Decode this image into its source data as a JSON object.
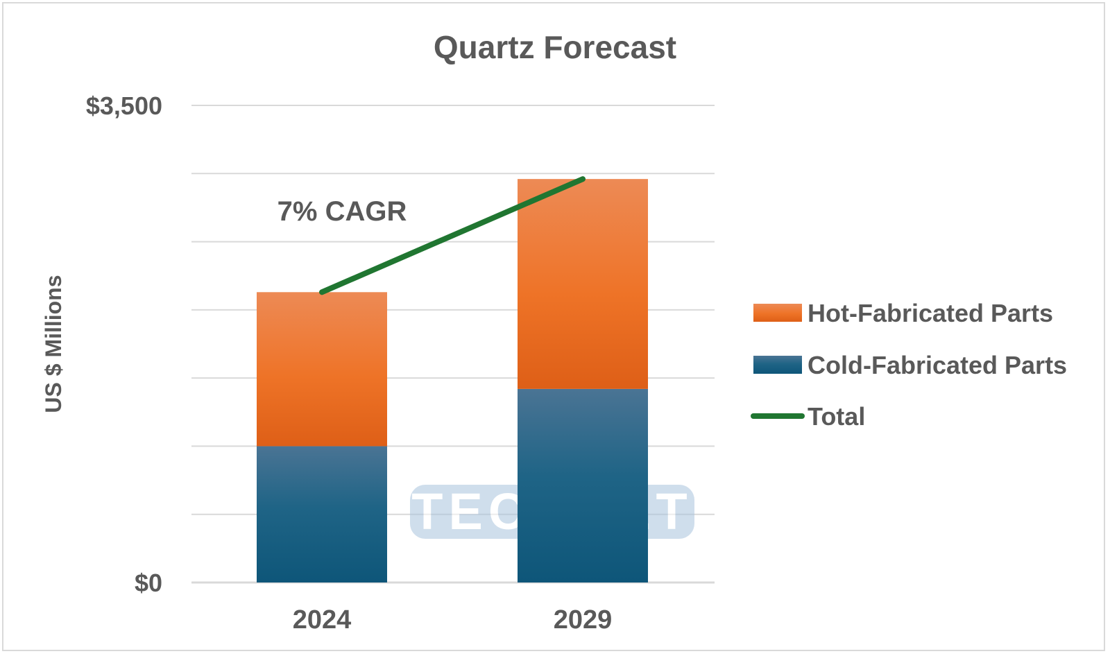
{
  "chart_data": {
    "type": "bar",
    "stacked": true,
    "title": "Quartz Forecast",
    "ylabel": "US $ Millions",
    "xlabel": "",
    "ylim": [
      0,
      3500
    ],
    "gridlines": true,
    "y_tick_labels": [
      "$0",
      "$3,500"
    ],
    "categories": [
      "2024",
      "2029"
    ],
    "series": [
      {
        "name": "Cold-Fabricated Parts",
        "type": "bar",
        "values": [
          1000,
          1420
        ]
      },
      {
        "name": "Hot-Fabricated Parts",
        "type": "bar",
        "values": [
          1130,
          1540
        ]
      },
      {
        "name": "Total",
        "type": "line",
        "values": [
          2130,
          2960
        ]
      }
    ],
    "annotation": "7% CAGR",
    "legend_position": "right",
    "watermark": "TECHCET"
  },
  "colors": {
    "hot_top": "#ED8A55",
    "hot_mid": "#EE7327",
    "hot_bottom": "#DE5F17",
    "cold_top": "#4A7494",
    "cold_mid": "#1F6486",
    "cold_bottom": "#0E5679",
    "total_line": "#207631",
    "grid": "#d9d9d9",
    "text": "#595959"
  }
}
